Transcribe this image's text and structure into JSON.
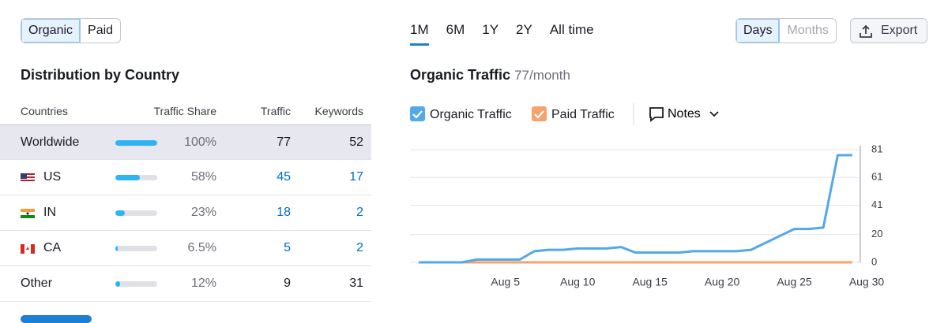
{
  "tabs": [
    "Organic",
    "Paid"
  ],
  "periods": [
    "1M",
    "6M",
    "1Y",
    "2Y",
    "All time"
  ],
  "granularity": [
    "Days",
    "Months"
  ],
  "export": "Export",
  "table": {
    "title": "Distribution by Country",
    "columns": [
      "Countries",
      "Traffic Share",
      "Traffic",
      "Keywords"
    ],
    "rows": [
      {
        "country": "Worldwide",
        "share": 100,
        "share_label": "100%",
        "traffic": 77,
        "keywords": 52
      },
      {
        "country": "US",
        "share": 58,
        "share_label": "58%",
        "traffic": 45,
        "keywords": 17
      },
      {
        "country": "IN",
        "share": 23,
        "share_label": "23%",
        "traffic": 18,
        "keywords": 2
      },
      {
        "country": "CA",
        "share": 6.5,
        "share_label": "6.5%",
        "traffic": 5,
        "keywords": 2
      },
      {
        "country": "Other",
        "share": 12,
        "share_label": "12%",
        "traffic": 9,
        "keywords": 31
      }
    ]
  },
  "chart_data": {
    "type": "line",
    "title": "Organic Traffic",
    "subtitle": "77/month",
    "notes": "Notes",
    "x": [
      -1,
      0,
      1,
      2,
      3,
      4,
      5,
      6,
      7,
      8,
      9,
      10,
      11,
      12,
      13,
      14,
      15,
      16,
      17,
      18,
      19,
      20,
      21,
      22,
      23,
      24,
      25,
      26,
      27,
      28,
      29
    ],
    "series": [
      {
        "name": "Organic Traffic",
        "color": "#52a8e8",
        "values": [
          0,
          0,
          0,
          0,
          2,
          2,
          2,
          2,
          8,
          9,
          9,
          10,
          10,
          10,
          11,
          7,
          7,
          7,
          7,
          8,
          8,
          8,
          8,
          9,
          14,
          19,
          24,
          24,
          25,
          77,
          77
        ]
      },
      {
        "name": "Paid Traffic",
        "color": "#f5a36b",
        "values": [
          0,
          0,
          0,
          0,
          0,
          0,
          0,
          0,
          0,
          0,
          0,
          0,
          0,
          0,
          0,
          0,
          0,
          0,
          0,
          0,
          0,
          0,
          0,
          0,
          0,
          0,
          0,
          0,
          0,
          0,
          0
        ]
      }
    ],
    "xlim": [
      -1.6,
      30
    ],
    "xticks": [
      {
        "value": 5,
        "label": "Aug 5"
      },
      {
        "value": 10,
        "label": "Aug 10"
      },
      {
        "value": 15,
        "label": "Aug 15"
      },
      {
        "value": 20,
        "label": "Aug 20"
      },
      {
        "value": 25,
        "label": "Aug 25"
      },
      {
        "value": 30,
        "label": "Aug 30"
      }
    ],
    "ylim": [
      0,
      81
    ],
    "yticks": [
      0,
      20,
      41,
      61,
      81
    ],
    "grid": true
  }
}
